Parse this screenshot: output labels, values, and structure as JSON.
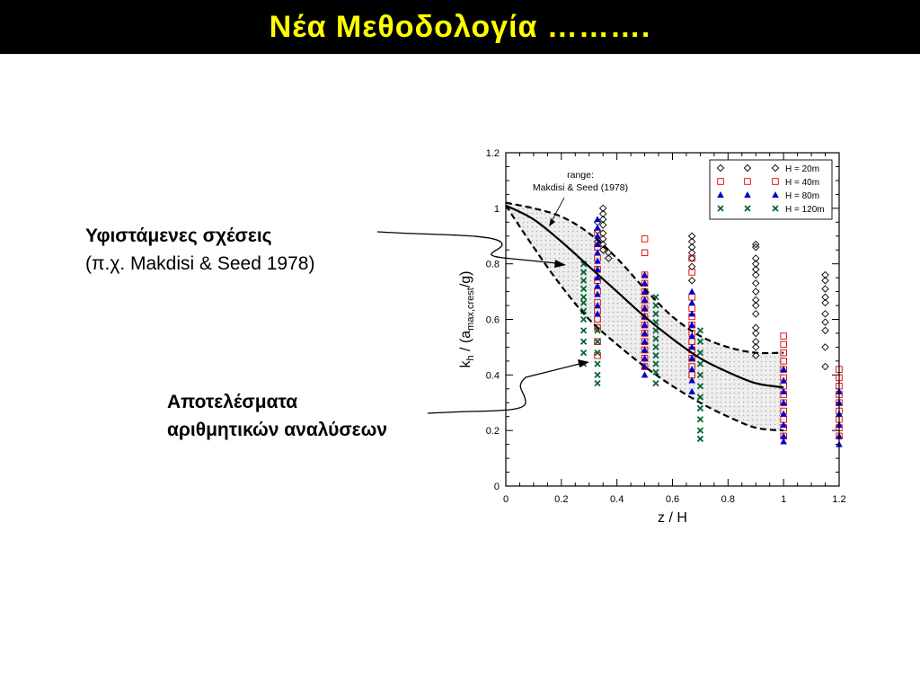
{
  "slide": {
    "title": "Νέα Μεθοδολογία ……….",
    "callout_existing": {
      "line1": "Υφιστάμενες σχέσεις",
      "line2": "(π.χ.  Makdisi & Seed 1978)"
    },
    "callout_results": {
      "line1": "Αποτελέσματα",
      "line2": "αριθμητικών αναλύσεων"
    }
  },
  "chart_data": {
    "type": "scatter",
    "title": "",
    "xlabel": "z / H",
    "ylabel": {
      "base": "k",
      "sub1": "h",
      "mid": " / (a",
      "sub2": "max,crest",
      "end": "/g)"
    },
    "xlim": [
      0,
      1.2
    ],
    "ylim": [
      0,
      1.2
    ],
    "xticks": [
      "0",
      "0.2",
      "0.4",
      "0.6",
      "0.8",
      "1",
      "1.2"
    ],
    "yticks": [
      "0",
      "0.2",
      "0.4",
      "0.6",
      "0.8",
      "1",
      "1.2"
    ],
    "annotation": {
      "line1": "range:",
      "line2": "Makdisi & Seed (1978)"
    },
    "legend_position": "top-right",
    "mean_curve": {
      "x": [
        0,
        0.1,
        0.2,
        0.3,
        0.4,
        0.5,
        0.6,
        0.7,
        0.8,
        0.9,
        1.0
      ],
      "y": [
        1.01,
        0.96,
        0.88,
        0.79,
        0.7,
        0.61,
        0.53,
        0.46,
        0.41,
        0.37,
        0.355
      ]
    },
    "range_upper": {
      "x": [
        0,
        0.1,
        0.2,
        0.3,
        0.4,
        0.5,
        0.6,
        0.7,
        0.8,
        0.9,
        1.0
      ],
      "y": [
        1.02,
        1.0,
        0.97,
        0.91,
        0.82,
        0.71,
        0.61,
        0.54,
        0.5,
        0.48,
        0.48
      ]
    },
    "range_lower": {
      "x": [
        0,
        0.1,
        0.2,
        0.3,
        0.4,
        0.5,
        0.6,
        0.7,
        0.8,
        0.9,
        1.0
      ],
      "y": [
        1.01,
        0.86,
        0.72,
        0.6,
        0.51,
        0.43,
        0.36,
        0.3,
        0.25,
        0.21,
        0.2
      ]
    },
    "series": [
      {
        "name": "H = 20m",
        "marker": "diamond",
        "color": "#000000",
        "points": [
          [
            0.33,
            0.95
          ],
          [
            0.33,
            0.92
          ],
          [
            0.33,
            0.88
          ],
          [
            0.35,
            1.0
          ],
          [
            0.35,
            0.98
          ],
          [
            0.35,
            0.96
          ],
          [
            0.35,
            0.94
          ],
          [
            0.35,
            0.91
          ],
          [
            0.35,
            0.89
          ],
          [
            0.35,
            0.87
          ],
          [
            0.35,
            0.85
          ],
          [
            0.37,
            0.84
          ],
          [
            0.37,
            0.82
          ],
          [
            0.67,
            0.9
          ],
          [
            0.67,
            0.88
          ],
          [
            0.67,
            0.86
          ],
          [
            0.67,
            0.84
          ],
          [
            0.67,
            0.82
          ],
          [
            0.67,
            0.79
          ],
          [
            0.67,
            0.74
          ],
          [
            0.9,
            0.87
          ],
          [
            0.9,
            0.86
          ],
          [
            0.9,
            0.82
          ],
          [
            0.9,
            0.8
          ],
          [
            0.9,
            0.78
          ],
          [
            0.9,
            0.76
          ],
          [
            0.9,
            0.73
          ],
          [
            0.9,
            0.7
          ],
          [
            0.9,
            0.67
          ],
          [
            0.9,
            0.65
          ],
          [
            0.9,
            0.62
          ],
          [
            0.9,
            0.57
          ],
          [
            0.9,
            0.55
          ],
          [
            0.9,
            0.52
          ],
          [
            0.9,
            0.5
          ],
          [
            0.9,
            0.47
          ],
          [
            1.15,
            0.76
          ],
          [
            1.15,
            0.74
          ],
          [
            1.15,
            0.71
          ],
          [
            1.15,
            0.68
          ],
          [
            1.15,
            0.66
          ],
          [
            1.15,
            0.62
          ],
          [
            1.15,
            0.59
          ],
          [
            1.15,
            0.56
          ],
          [
            1.15,
            0.5
          ],
          [
            1.15,
            0.43
          ]
        ]
      },
      {
        "name": "H = 40m",
        "marker": "square",
        "color": "#dd0000",
        "points": [
          [
            0.33,
            0.91
          ],
          [
            0.33,
            0.86
          ],
          [
            0.33,
            0.82
          ],
          [
            0.33,
            0.78
          ],
          [
            0.33,
            0.74
          ],
          [
            0.33,
            0.7
          ],
          [
            0.33,
            0.66
          ],
          [
            0.33,
            0.63
          ],
          [
            0.33,
            0.6
          ],
          [
            0.33,
            0.57
          ],
          [
            0.33,
            0.52
          ],
          [
            0.33,
            0.47
          ],
          [
            0.5,
            0.89
          ],
          [
            0.5,
            0.84
          ],
          [
            0.5,
            0.76
          ],
          [
            0.5,
            0.73
          ],
          [
            0.5,
            0.7
          ],
          [
            0.5,
            0.67
          ],
          [
            0.5,
            0.64
          ],
          [
            0.5,
            0.61
          ],
          [
            0.5,
            0.58
          ],
          [
            0.5,
            0.55
          ],
          [
            0.5,
            0.52
          ],
          [
            0.5,
            0.49
          ],
          [
            0.5,
            0.46
          ],
          [
            0.5,
            0.43
          ],
          [
            0.67,
            0.82
          ],
          [
            0.67,
            0.77
          ],
          [
            0.67,
            0.68
          ],
          [
            0.67,
            0.64
          ],
          [
            0.67,
            0.61
          ],
          [
            0.67,
            0.58
          ],
          [
            0.67,
            0.55
          ],
          [
            0.67,
            0.52
          ],
          [
            0.67,
            0.49
          ],
          [
            0.67,
            0.46
          ],
          [
            0.67,
            0.43
          ],
          [
            0.67,
            0.4
          ],
          [
            1.0,
            0.54
          ],
          [
            1.0,
            0.51
          ],
          [
            1.0,
            0.48
          ],
          [
            1.0,
            0.45
          ],
          [
            1.0,
            0.42
          ],
          [
            1.0,
            0.39
          ],
          [
            1.0,
            0.36
          ],
          [
            1.0,
            0.33
          ],
          [
            1.0,
            0.3
          ],
          [
            1.0,
            0.27
          ],
          [
            1.0,
            0.24
          ],
          [
            1.0,
            0.21
          ],
          [
            1.0,
            0.18
          ],
          [
            1.2,
            0.42
          ],
          [
            1.2,
            0.39
          ],
          [
            1.2,
            0.36
          ],
          [
            1.2,
            0.33
          ],
          [
            1.2,
            0.3
          ],
          [
            1.2,
            0.27
          ],
          [
            1.2,
            0.24
          ],
          [
            1.2,
            0.21
          ],
          [
            1.2,
            0.18
          ]
        ]
      },
      {
        "name": "H = 80m",
        "marker": "triangle",
        "color": "#0000cc",
        "points": [
          [
            0.33,
            0.96
          ],
          [
            0.33,
            0.93
          ],
          [
            0.33,
            0.9
          ],
          [
            0.33,
            0.87
          ],
          [
            0.33,
            0.84
          ],
          [
            0.33,
            0.81
          ],
          [
            0.33,
            0.78
          ],
          [
            0.33,
            0.75
          ],
          [
            0.33,
            0.72
          ],
          [
            0.33,
            0.69
          ],
          [
            0.33,
            0.65
          ],
          [
            0.33,
            0.62
          ],
          [
            0.5,
            0.76
          ],
          [
            0.5,
            0.73
          ],
          [
            0.5,
            0.7
          ],
          [
            0.5,
            0.67
          ],
          [
            0.5,
            0.64
          ],
          [
            0.5,
            0.61
          ],
          [
            0.5,
            0.58
          ],
          [
            0.5,
            0.55
          ],
          [
            0.5,
            0.52
          ],
          [
            0.5,
            0.49
          ],
          [
            0.5,
            0.46
          ],
          [
            0.5,
            0.43
          ],
          [
            0.5,
            0.4
          ],
          [
            0.67,
            0.7
          ],
          [
            0.67,
            0.66
          ],
          [
            0.67,
            0.62
          ],
          [
            0.67,
            0.58
          ],
          [
            0.67,
            0.54
          ],
          [
            0.67,
            0.5
          ],
          [
            0.67,
            0.46
          ],
          [
            0.67,
            0.42
          ],
          [
            0.67,
            0.38
          ],
          [
            0.67,
            0.34
          ],
          [
            1.0,
            0.42
          ],
          [
            1.0,
            0.38
          ],
          [
            1.0,
            0.34
          ],
          [
            1.0,
            0.3
          ],
          [
            1.0,
            0.26
          ],
          [
            1.0,
            0.22
          ],
          [
            1.0,
            0.18
          ],
          [
            1.0,
            0.16
          ],
          [
            1.2,
            0.34
          ],
          [
            1.2,
            0.3
          ],
          [
            1.2,
            0.26
          ],
          [
            1.2,
            0.22
          ],
          [
            1.2,
            0.18
          ],
          [
            1.2,
            0.15
          ]
        ]
      },
      {
        "name": "H = 120m",
        "marker": "cross",
        "color": "#006633",
        "points": [
          [
            0.28,
            0.8
          ],
          [
            0.28,
            0.77
          ],
          [
            0.28,
            0.74
          ],
          [
            0.28,
            0.71
          ],
          [
            0.28,
            0.68
          ],
          [
            0.28,
            0.66
          ],
          [
            0.28,
            0.63
          ],
          [
            0.28,
            0.6
          ],
          [
            0.28,
            0.56
          ],
          [
            0.28,
            0.52
          ],
          [
            0.28,
            0.48
          ],
          [
            0.28,
            0.44
          ],
          [
            0.33,
            0.56
          ],
          [
            0.33,
            0.52
          ],
          [
            0.33,
            0.48
          ],
          [
            0.33,
            0.44
          ],
          [
            0.33,
            0.4
          ],
          [
            0.33,
            0.37
          ],
          [
            0.54,
            0.68
          ],
          [
            0.54,
            0.65
          ],
          [
            0.54,
            0.62
          ],
          [
            0.54,
            0.59
          ],
          [
            0.54,
            0.56
          ],
          [
            0.54,
            0.53
          ],
          [
            0.54,
            0.5
          ],
          [
            0.54,
            0.47
          ],
          [
            0.54,
            0.44
          ],
          [
            0.54,
            0.41
          ],
          [
            0.54,
            0.37
          ],
          [
            0.7,
            0.56
          ],
          [
            0.7,
            0.52
          ],
          [
            0.7,
            0.48
          ],
          [
            0.7,
            0.44
          ],
          [
            0.7,
            0.4
          ],
          [
            0.7,
            0.36
          ],
          [
            0.7,
            0.32
          ],
          [
            0.7,
            0.28
          ],
          [
            0.7,
            0.24
          ],
          [
            0.7,
            0.2
          ],
          [
            0.7,
            0.17
          ]
        ]
      }
    ]
  }
}
